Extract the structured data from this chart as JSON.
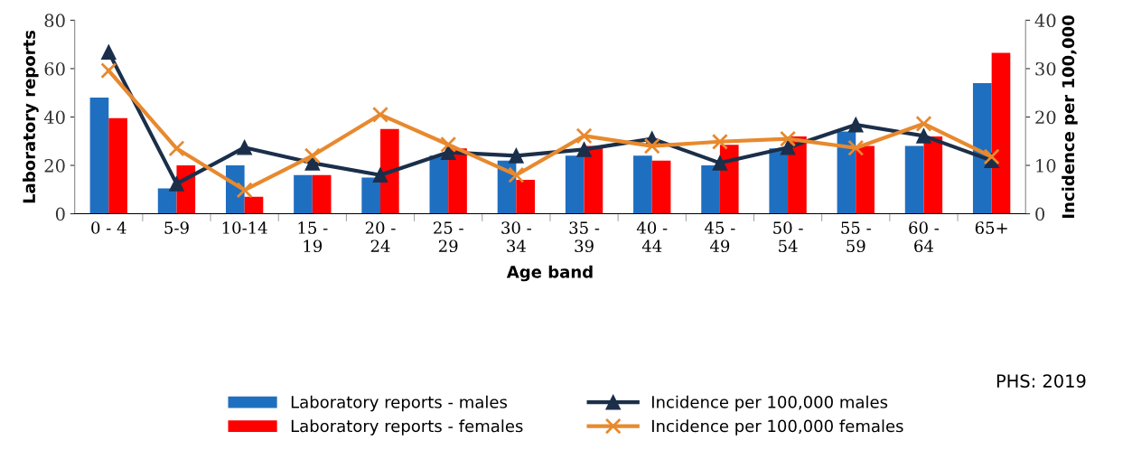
{
  "chart_data": {
    "type": "bar",
    "xlabel": "Age band",
    "ylabel": "Laboratory reports",
    "y2label": "Incidence per 100,000",
    "categories": [
      "0 - 4",
      "5-9",
      "10-14",
      "15 -\n19",
      "20 -\n24",
      "25 -\n29",
      "30 -\n34",
      "35 -\n39",
      "40 -\n44",
      "45 -\n49",
      "50 -\n54",
      "55 -\n59",
      "60 -\n64",
      "65+"
    ],
    "series": [
      {
        "name": "Laboratory reports - males",
        "color": "#1f6fc0",
        "values": [
          48,
          10.5,
          20,
          16,
          15,
          24,
          22,
          24,
          24,
          20,
          27,
          34,
          28,
          54
        ]
      },
      {
        "name": "Laboratory reports - females",
        "color": "#ff0000",
        "values": [
          39.5,
          20,
          7,
          16,
          35,
          27,
          14,
          28,
          22,
          28.5,
          32,
          28,
          32,
          66.5
        ]
      },
      {
        "name": "Incidence per 100,000 males",
        "type": "line",
        "axis": "y2",
        "marker": "triangle",
        "color": "#1b2f4a",
        "values": [
          33.4,
          6.2,
          13.7,
          10.5,
          8,
          12.7,
          12,
          13.3,
          15.5,
          10.5,
          13.7,
          18.4,
          16.1,
          11
        ]
      },
      {
        "name": "Incidence per 100,000 females",
        "type": "line",
        "axis": "y2",
        "marker": "cross",
        "color": "#e8892e",
        "values": [
          29.6,
          13.5,
          4.9,
          12,
          20.5,
          14.3,
          8,
          16.1,
          14,
          14.9,
          15.5,
          13.6,
          18.6,
          11.8
        ]
      }
    ],
    "ylim": [
      0,
      80
    ],
    "yticks": [
      0,
      20,
      40,
      60,
      80
    ],
    "y2lim": [
      0,
      40
    ],
    "y2ticks": [
      0,
      10,
      20,
      30,
      40
    ],
    "grid": false,
    "legend": "bottom",
    "annotations": [
      "PHS: 2019"
    ]
  }
}
